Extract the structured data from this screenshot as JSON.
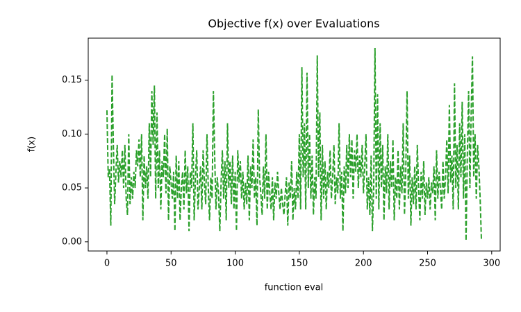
{
  "chart_data": {
    "type": "line",
    "title": "Objective f(x) over Evaluations",
    "x_label": "function eval",
    "y_label": "f(x)",
    "color": "#2ca02c",
    "linestyle": "dashed",
    "x": [
      0,
      1,
      2,
      3,
      4,
      5,
      6,
      7,
      8,
      9,
      10,
      11,
      12,
      13,
      14,
      15,
      16,
      17,
      18,
      19,
      20,
      21,
      22,
      23,
      24,
      25,
      26,
      27,
      28,
      29,
      30,
      31,
      32,
      33,
      34,
      35,
      36,
      37,
      38,
      39,
      40,
      41,
      42,
      43,
      44,
      45,
      46,
      47,
      48,
      49,
      50,
      51,
      52,
      53,
      54,
      55,
      56,
      57,
      58,
      59,
      60,
      61,
      62,
      63,
      64,
      65,
      66,
      67,
      68,
      69,
      70,
      71,
      72,
      73,
      74,
      75,
      76,
      77,
      78,
      79,
      80,
      81,
      82,
      83,
      84,
      85,
      86,
      87,
      88,
      89,
      90,
      91,
      92,
      93,
      94,
      95,
      96,
      97,
      98,
      99,
      100,
      101,
      102,
      103,
      104,
      105,
      106,
      107,
      108,
      109,
      110,
      111,
      112,
      113,
      114,
      115,
      116,
      117,
      118,
      119,
      120,
      121,
      122,
      123,
      124,
      125,
      126,
      127,
      128,
      129,
      130,
      131,
      132,
      133,
      134,
      135,
      136,
      137,
      138,
      139,
      140,
      141,
      142,
      143,
      144,
      145,
      146,
      147,
      148,
      149,
      150,
      151,
      152,
      153,
      154,
      155,
      156,
      157,
      158,
      159,
      160,
      161,
      162,
      163,
      164,
      165,
      166,
      167,
      168,
      169,
      170,
      171,
      172,
      173,
      174,
      175,
      176,
      177,
      178,
      179,
      180,
      181,
      182,
      183,
      184,
      185,
      186,
      187,
      188,
      189,
      190,
      191,
      192,
      193,
      194,
      195,
      196,
      197,
      198,
      199,
      200,
      201,
      202,
      203,
      204,
      205,
      206,
      207,
      208,
      209,
      210,
      211,
      212,
      213,
      214,
      215,
      216,
      217,
      218,
      219,
      220,
      221,
      222,
      223,
      224,
      225,
      226,
      227,
      228,
      229,
      230,
      231,
      232,
      233,
      234,
      235,
      236,
      237,
      238,
      239,
      240,
      241,
      242,
      243,
      244,
      245,
      246,
      247,
      248,
      249,
      250,
      251,
      252,
      253,
      254,
      255,
      256,
      257,
      258,
      259,
      260,
      261,
      262,
      263,
      264,
      265,
      266,
      267,
      268,
      269,
      270,
      271,
      272,
      273,
      274,
      275,
      276,
      277,
      278,
      279,
      280,
      281,
      282,
      283,
      284,
      285,
      286,
      287,
      288,
      289,
      290,
      291,
      292
    ],
    "values": [
      0.122,
      0.06,
      0.068,
      0.015,
      0.155,
      0.09,
      0.035,
      0.065,
      0.09,
      0.055,
      0.075,
      0.06,
      0.085,
      0.05,
      0.09,
      0.04,
      0.025,
      0.1,
      0.035,
      0.06,
      0.04,
      0.065,
      0.05,
      0.085,
      0.07,
      0.095,
      0.06,
      0.1,
      0.02,
      0.08,
      0.05,
      0.07,
      0.04,
      0.11,
      0.06,
      0.14,
      0.09,
      0.145,
      0.04,
      0.12,
      0.05,
      0.085,
      0.03,
      0.075,
      0.06,
      0.1,
      0.045,
      0.105,
      0.02,
      0.07,
      0.055,
      0.04,
      0.065,
      0.01,
      0.08,
      0.04,
      0.075,
      0.02,
      0.05,
      0.065,
      0.03,
      0.085,
      0.045,
      0.07,
      0.01,
      0.065,
      0.05,
      0.11,
      0.02,
      0.06,
      0.085,
      0.03,
      0.05,
      0.07,
      0.03,
      0.085,
      0.055,
      0.035,
      0.1,
      0.05,
      0.02,
      0.06,
      0.04,
      0.14,
      0.08,
      0.03,
      0.06,
      0.045,
      0.01,
      0.055,
      0.085,
      0.04,
      0.075,
      0.02,
      0.11,
      0.05,
      0.075,
      0.035,
      0.08,
      0.03,
      0.065,
      0.01,
      0.085,
      0.055,
      0.075,
      0.04,
      0.065,
      0.03,
      0.055,
      0.035,
      0.08,
      0.02,
      0.07,
      0.05,
      0.095,
      0.04,
      0.06,
      0.015,
      0.123,
      0.06,
      0.045,
      0.025,
      0.07,
      0.04,
      0.1,
      0.03,
      0.065,
      0.045,
      0.03,
      0.06,
      0.02,
      0.055,
      0.04,
      0.065,
      0.045,
      0.03,
      0.05,
      0.035,
      0.025,
      0.045,
      0.06,
      0.015,
      0.055,
      0.04,
      0.075,
      0.02,
      0.05,
      0.03,
      0.065,
      0.04,
      0.1,
      0.03,
      0.162,
      0.06,
      0.11,
      0.03,
      0.157,
      0.05,
      0.1,
      0.04,
      0.08,
      0.025,
      0.06,
      0.04,
      0.173,
      0.06,
      0.12,
      0.02,
      0.09,
      0.04,
      0.075,
      0.03,
      0.065,
      0.05,
      0.085,
      0.04,
      0.06,
      0.09,
      0.035,
      0.06,
      0.045,
      0.11,
      0.04,
      0.065,
      0.01,
      0.07,
      0.045,
      0.09,
      0.05,
      0.1,
      0.06,
      0.095,
      0.04,
      0.085,
      0.065,
      0.1,
      0.05,
      0.08,
      0.06,
      0.09,
      0.045,
      0.07,
      0.1,
      0.03,
      0.06,
      0.025,
      0.08,
      0.01,
      0.05,
      0.18,
      0.04,
      0.137,
      0.03,
      0.11,
      0.05,
      0.09,
      0.02,
      0.07,
      0.045,
      0.1,
      0.03,
      0.075,
      0.05,
      0.095,
      0.02,
      0.06,
      0.04,
      0.085,
      0.03,
      0.07,
      0.045,
      0.11,
      0.025,
      0.065,
      0.14,
      0.04,
      0.08,
      0.015,
      0.06,
      0.035,
      0.07,
      0.03,
      0.09,
      0.05,
      0.02,
      0.065,
      0.04,
      0.075,
      0.025,
      0.055,
      0.04,
      0.06,
      0.03,
      0.055,
      0.045,
      0.07,
      0.02,
      0.085,
      0.04,
      0.065,
      0.05,
      0.03,
      0.075,
      0.04,
      0.06,
      0.095,
      0.045,
      0.127,
      0.055,
      0.08,
      0.03,
      0.147,
      0.05,
      0.09,
      0.03,
      0.11,
      0.06,
      0.13,
      0.04,
      0.1,
      0.001,
      0.08,
      0.14,
      0.05,
      0.12,
      0.172,
      0.06,
      0.1,
      0.04,
      0.09,
      0.07,
      0.04,
      0.001
    ],
    "xlim": [
      -14.6,
      306.6
    ],
    "ylim": [
      -0.0085,
      0.189
    ],
    "xticks": [
      0,
      50,
      100,
      150,
      200,
      250,
      300
    ],
    "yticks": [
      {
        "value": 0,
        "label": "0.00"
      },
      {
        "value": 0.05,
        "label": "0.05"
      },
      {
        "value": 0.1,
        "label": "0.10"
      },
      {
        "value": 0.15,
        "label": "0.15"
      }
    ]
  }
}
